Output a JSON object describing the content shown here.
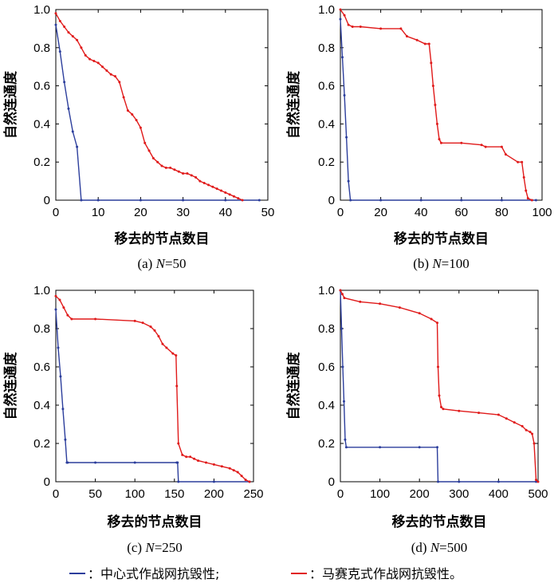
{
  "colors": {
    "centralized": "#2c3e9c",
    "mosaic": "#e01a1a"
  },
  "legend": {
    "items": [
      {
        "label": "：中心式作战网抗毁性;",
        "color": "#2c3e9c"
      },
      {
        "label": "：马赛克式作战网抗毁性。",
        "color": "#e01a1a"
      }
    ]
  },
  "chart_data": [
    {
      "type": "line",
      "panel_letter": "(a)",
      "n_label": "N",
      "n_value": "=50",
      "xlabel": "移去的节点数目",
      "ylabel": "自然连通度",
      "xlim": [
        0,
        50
      ],
      "ylim": [
        0,
        1
      ],
      "xticks": [
        0,
        10,
        20,
        30,
        40,
        50
      ],
      "yticks": [
        0,
        0.2,
        0.4,
        0.6,
        0.8,
        1.0
      ],
      "ytick_labels": [
        "0",
        "0.2",
        "0.4",
        "0.6",
        "0.8",
        "1.0"
      ],
      "grid": false,
      "series": [
        {
          "x": [
            0,
            1,
            2,
            3,
            4,
            5,
            6,
            10,
            20,
            30,
            40,
            48
          ],
          "y": [
            0.92,
            0.78,
            0.62,
            0.48,
            0.36,
            0.28,
            0,
            0,
            0,
            0,
            0,
            0
          ]
        },
        {
          "x": [
            0,
            1,
            2,
            3,
            4,
            5,
            6,
            7,
            8,
            9,
            10,
            11,
            12,
            13,
            14,
            15,
            16,
            17,
            18,
            19,
            20,
            21,
            22,
            23,
            24,
            25,
            26,
            27,
            28,
            29,
            30,
            31,
            32,
            33,
            34,
            35,
            36,
            37,
            38,
            39,
            40,
            41,
            42,
            43,
            44
          ],
          "y": [
            0.98,
            0.94,
            0.91,
            0.88,
            0.86,
            0.84,
            0.8,
            0.76,
            0.74,
            0.73,
            0.72,
            0.7,
            0.68,
            0.66,
            0.65,
            0.62,
            0.54,
            0.47,
            0.45,
            0.42,
            0.38,
            0.3,
            0.26,
            0.22,
            0.2,
            0.18,
            0.17,
            0.17,
            0.16,
            0.15,
            0.14,
            0.14,
            0.13,
            0.12,
            0.1,
            0.09,
            0.08,
            0.07,
            0.06,
            0.05,
            0.04,
            0.03,
            0.02,
            0.01,
            0
          ]
        }
      ]
    },
    {
      "type": "line",
      "panel_letter": "(b)",
      "n_label": "N",
      "n_value": "=100",
      "xlabel": "移去的节点数目",
      "ylabel": "自然连通度",
      "xlim": [
        0,
        100
      ],
      "ylim": [
        0,
        1
      ],
      "xticks": [
        0,
        20,
        40,
        60,
        80,
        100
      ],
      "yticks": [
        0,
        0.2,
        0.4,
        0.6,
        0.8,
        1.0
      ],
      "ytick_labels": [
        "0",
        "0.2",
        "0.4",
        "0.6",
        "0.8",
        "1.0"
      ],
      "grid": false,
      "series": [
        {
          "x": [
            0,
            1,
            2,
            3,
            4,
            5,
            20,
            40,
            60,
            80,
            97
          ],
          "y": [
            0.95,
            0.75,
            0.55,
            0.33,
            0.1,
            0,
            0,
            0,
            0,
            0,
            0
          ]
        },
        {
          "x": [
            0,
            2,
            4,
            6,
            10,
            20,
            30,
            33,
            38,
            42,
            44,
            45,
            46,
            47,
            48,
            49,
            50,
            60,
            70,
            72,
            80,
            82,
            88,
            90,
            91,
            92,
            93,
            95
          ],
          "y": [
            1.0,
            0.97,
            0.92,
            0.91,
            0.91,
            0.9,
            0.9,
            0.86,
            0.84,
            0.82,
            0.82,
            0.72,
            0.6,
            0.5,
            0.4,
            0.32,
            0.3,
            0.3,
            0.29,
            0.28,
            0.28,
            0.24,
            0.2,
            0.2,
            0.12,
            0.05,
            0.01,
            0
          ]
        }
      ]
    },
    {
      "type": "line",
      "panel_letter": "(c)",
      "n_label": "N",
      "n_value": "=250",
      "xlabel": "移去的节点数目",
      "ylabel": "自然连通度",
      "xlim": [
        0,
        250
      ],
      "ylim": [
        0,
        1
      ],
      "xticks": [
        0,
        50,
        100,
        150,
        200,
        250
      ],
      "yticks": [
        0,
        0.2,
        0.4,
        0.6,
        0.8,
        1.0
      ],
      "ytick_labels": [
        "0",
        "0.2",
        "0.4",
        "0.6",
        "0.8",
        "1.0"
      ],
      "grid": false,
      "series": [
        {
          "x": [
            0,
            3,
            6,
            9,
            12,
            14,
            15,
            50,
            100,
            153,
            154,
            155,
            200,
            245
          ],
          "y": [
            0.9,
            0.7,
            0.55,
            0.38,
            0.22,
            0.1,
            0.1,
            0.1,
            0.1,
            0.1,
            0.1,
            0,
            0,
            0
          ]
        },
        {
          "x": [
            0,
            5,
            10,
            15,
            20,
            50,
            100,
            110,
            120,
            125,
            130,
            135,
            140,
            148,
            152,
            153,
            155,
            160,
            165,
            170,
            175,
            180,
            190,
            200,
            210,
            220,
            225,
            230,
            235,
            240,
            245
          ],
          "y": [
            0.97,
            0.95,
            0.91,
            0.87,
            0.85,
            0.85,
            0.84,
            0.83,
            0.81,
            0.79,
            0.76,
            0.72,
            0.7,
            0.67,
            0.66,
            0.5,
            0.2,
            0.14,
            0.13,
            0.13,
            0.12,
            0.11,
            0.1,
            0.09,
            0.08,
            0.07,
            0.06,
            0.05,
            0.03,
            0.01,
            0
          ]
        }
      ]
    },
    {
      "type": "line",
      "panel_letter": "(d)",
      "n_label": "N",
      "n_value": "=500",
      "xlabel": "移去的节点数目",
      "ylabel": "自然连通度",
      "xlim": [
        0,
        500
      ],
      "ylim": [
        0,
        1
      ],
      "xticks": [
        0,
        100,
        200,
        300,
        400,
        500
      ],
      "yticks": [
        0,
        0.2,
        0.4,
        0.6,
        0.8,
        1.0
      ],
      "ytick_labels": [
        "0",
        "0.2",
        "0.4",
        "0.6",
        "0.8",
        "1.0"
      ],
      "grid": false,
      "series": [
        {
          "x": [
            0,
            3,
            6,
            9,
            12,
            15,
            100,
            200,
            245,
            247,
            300,
            400,
            495
          ],
          "y": [
            1.0,
            0.8,
            0.6,
            0.42,
            0.22,
            0.18,
            0.18,
            0.18,
            0.18,
            0,
            0,
            0,
            0
          ]
        },
        {
          "x": [
            0,
            5,
            10,
            50,
            100,
            150,
            200,
            230,
            245,
            247,
            250,
            255,
            260,
            300,
            350,
            400,
            420,
            440,
            460,
            470,
            480,
            485,
            490,
            495,
            500
          ],
          "y": [
            1.0,
            0.98,
            0.96,
            0.94,
            0.93,
            0.91,
            0.88,
            0.85,
            0.83,
            0.6,
            0.45,
            0.39,
            0.38,
            0.37,
            0.36,
            0.35,
            0.33,
            0.31,
            0.29,
            0.27,
            0.26,
            0.25,
            0.2,
            0.01,
            0
          ]
        }
      ]
    }
  ]
}
